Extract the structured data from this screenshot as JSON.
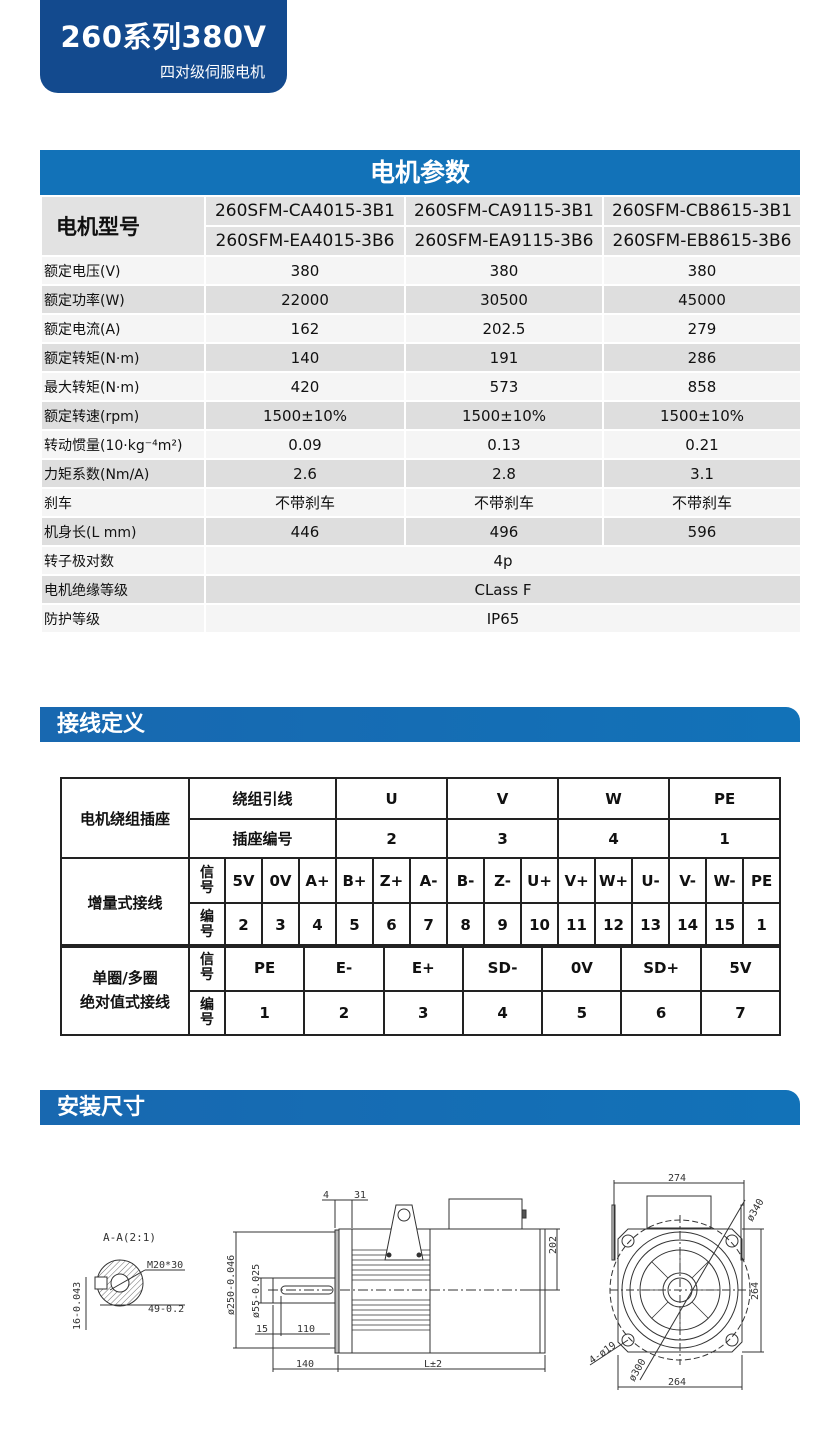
{
  "header": {
    "title": "260系列380V",
    "subtitle": "四对级伺服电机"
  },
  "spec": {
    "title": "电机参数",
    "model_label": "电机型号",
    "models_row1": [
      "260SFM-CA4015-3B1",
      "260SFM-CA9115-3B1",
      "260SFM-CB8615-3B1"
    ],
    "models_row2": [
      "260SFM-EA4015-3B6",
      "260SFM-EA9115-3B6",
      "260SFM-EB8615-3B6"
    ],
    "rows": [
      {
        "label": "额定电压(V)",
        "values": [
          "380",
          "380",
          "380"
        ]
      },
      {
        "label": "额定功率(W)",
        "values": [
          "22000",
          "30500",
          "45000"
        ]
      },
      {
        "label": "额定电流(A)",
        "values": [
          "162",
          "202.5",
          "279"
        ]
      },
      {
        "label": "额定转矩(N·m)",
        "values": [
          "140",
          "191",
          "286"
        ]
      },
      {
        "label": "最大转矩(N·m)",
        "values": [
          "420",
          "573",
          "858"
        ]
      },
      {
        "label": "额定转速(rpm)",
        "values": [
          "1500±10%",
          "1500±10%",
          "1500±10%"
        ]
      },
      {
        "label": "转动惯量(10·kg⁻⁴m²)",
        "values": [
          "0.09",
          "0.13",
          "0.21"
        ]
      },
      {
        "label": "力矩系数(Nm/A)",
        "values": [
          "2.6",
          "2.8",
          "3.1"
        ]
      },
      {
        "label": "刹车",
        "values": [
          "不带刹车",
          "不带刹车",
          "不带刹车"
        ]
      },
      {
        "label": "机身长(L mm)",
        "values": [
          "446",
          "496",
          "596"
        ]
      },
      {
        "label": "转子极对数",
        "value": "4p"
      },
      {
        "label": "电机绝缘等级",
        "value": "CLass F"
      },
      {
        "label": "防护等级",
        "value": "IP65"
      }
    ]
  },
  "wiring": {
    "title": "接线定义",
    "socket": {
      "label": "电机绕组插座",
      "lead_label": "绕组引线",
      "pin_label": "插座编号",
      "leads": [
        "U",
        "V",
        "W",
        "PE"
      ],
      "pins": [
        "2",
        "3",
        "4",
        "1"
      ]
    },
    "incremental": {
      "label": "增量式接线",
      "signal_label": "信号",
      "number_label": "编号",
      "signals": [
        "5V",
        "0V",
        "A+",
        "B+",
        "Z+",
        "A-",
        "B-",
        "Z-",
        "U+",
        "V+",
        "W+",
        "U-",
        "V-",
        "W-",
        "PE"
      ],
      "numbers": [
        "2",
        "3",
        "4",
        "5",
        "6",
        "7",
        "8",
        "9",
        "10",
        "11",
        "12",
        "13",
        "14",
        "15",
        "1"
      ]
    },
    "absolute": {
      "label_line1": "单圈/多圈",
      "label_line2": "绝对值式接线",
      "signal_label": "信号",
      "number_label": "编号",
      "signals": [
        "PE",
        "E-",
        "E+",
        "SD-",
        "0V",
        "SD+",
        "5V"
      ],
      "numbers": [
        "1",
        "2",
        "3",
        "4",
        "5",
        "6",
        "7"
      ]
    }
  },
  "install": {
    "title": "安装尺寸",
    "section": {
      "title": "A-A(2:1)",
      "thread": "M20*30",
      "key_width": "16-0.043",
      "key_depth": "49-0.2"
    },
    "side": {
      "flange": "4",
      "spigot": "31",
      "height": "202",
      "dia_flange": "ø250-0.046",
      "dia_shaft": "ø55-0.025",
      "shaft_offset": "15",
      "key_length": "110",
      "shaft_length": "140",
      "body_length": "L±2"
    },
    "front": {
      "width_top": "274",
      "width_bottom": "264",
      "height": "264",
      "pcd": "ø340",
      "holes": "4-ø19",
      "spigot_dia": "ø300"
    }
  },
  "colors": {
    "badge": "#134a8e",
    "accent": "#1272b8",
    "row_dark": "#dedede",
    "row_light": "#f5f5f5"
  }
}
